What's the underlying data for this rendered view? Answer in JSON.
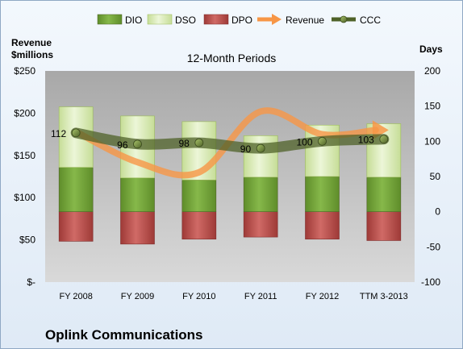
{
  "chart_data": {
    "type": "bar",
    "title": "12-Month Periods",
    "company": "Oplink Communications",
    "left_axis": {
      "label_line1": "Revenue",
      "label_line2": "$millions",
      "range": [
        0,
        250
      ],
      "tick_values": [
        0,
        50,
        100,
        150,
        200,
        250
      ],
      "tick_labels": [
        "$-",
        "$50",
        "$100",
        "$150",
        "$200",
        "$250"
      ]
    },
    "right_axis": {
      "label": "Days",
      "range": [
        -100,
        200
      ],
      "tick_values": [
        -100,
        -50,
        0,
        50,
        100,
        150,
        200
      ],
      "tick_labels": [
        "-100",
        "-50",
        "0",
        "50",
        "100",
        "150",
        "200"
      ]
    },
    "categories": [
      "FY 2008",
      "FY 2009",
      "FY 2010",
      "FY 2011",
      "FY 2012",
      "TTM 3-2013"
    ],
    "series": [
      {
        "name": "DIO",
        "type": "stacked-bar",
        "axis": "right",
        "color": "#77a83b",
        "values": [
          63,
          48,
          45,
          49,
          50,
          49
        ]
      },
      {
        "name": "DSO",
        "type": "stacked-bar",
        "axis": "right",
        "color": "#d8ebb4",
        "values": [
          86,
          88,
          83,
          59,
          73,
          76
        ]
      },
      {
        "name": "DPO",
        "type": "negative-bar",
        "axis": "right",
        "color": "#c0504d",
        "values": [
          -42,
          -46,
          -39,
          -36,
          -39,
          -41
        ]
      },
      {
        "name": "Revenue",
        "type": "arrow-line",
        "axis": "left",
        "color": "#f79646",
        "values": [
          178,
          142,
          130,
          202,
          175,
          180
        ]
      },
      {
        "name": "CCC",
        "type": "line-markers",
        "axis": "right",
        "color": "#4f6228",
        "values": [
          112,
          96,
          98,
          90,
          100,
          103
        ],
        "labels": [
          "112",
          "96",
          "98",
          "90",
          "100",
          "103"
        ]
      }
    ],
    "legend": {
      "position": "top"
    },
    "grid": false
  }
}
